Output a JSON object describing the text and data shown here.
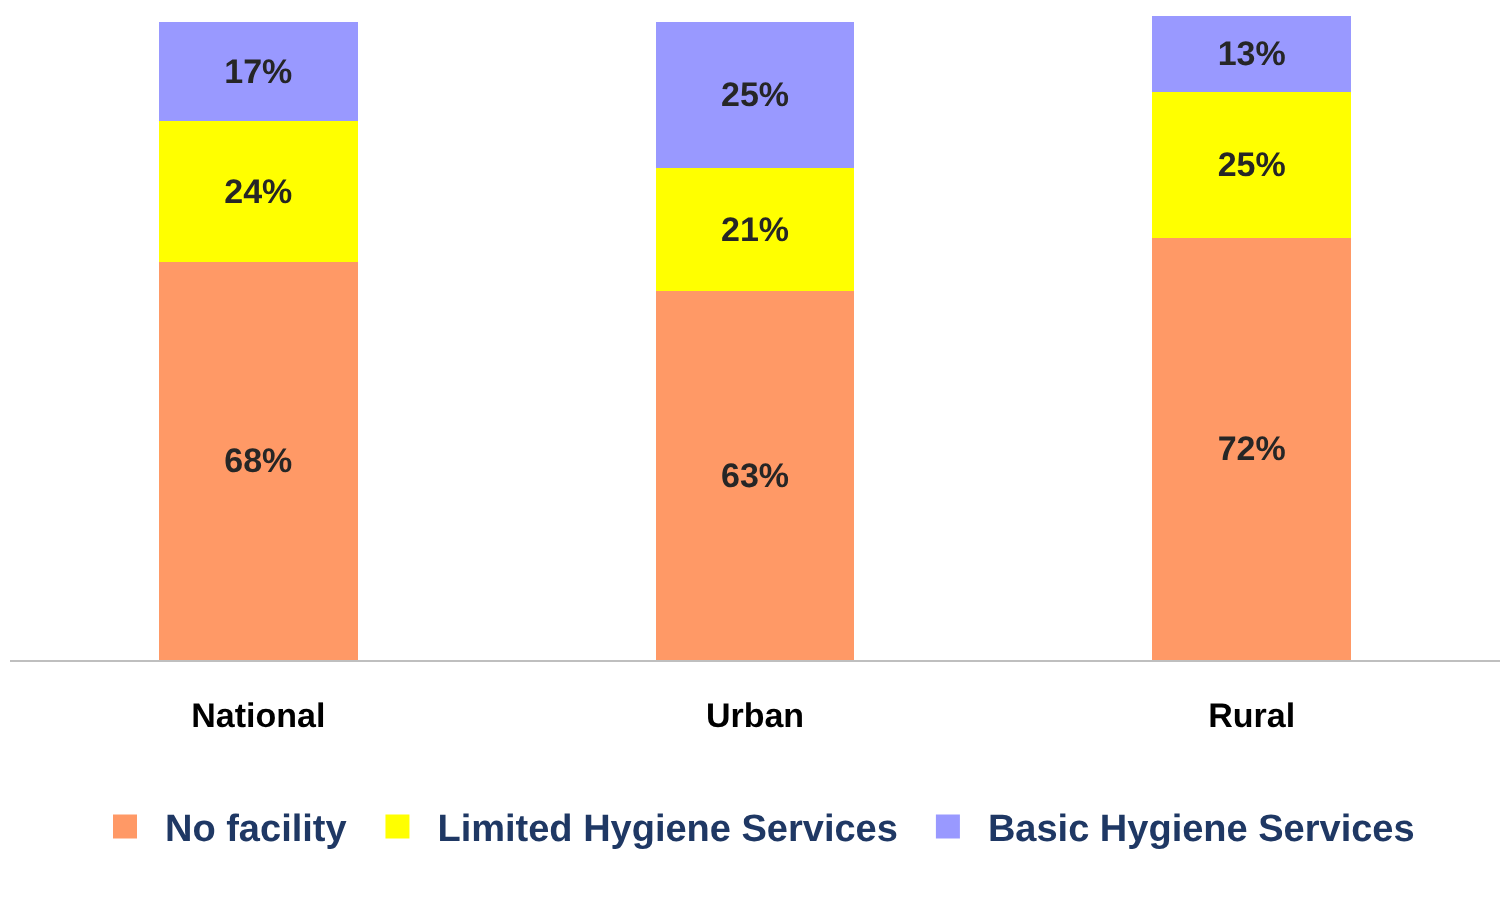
{
  "chart_data": {
    "type": "bar",
    "stacked": true,
    "legend": "bottom",
    "categories": [
      "National",
      "Urban",
      "Rural"
    ],
    "series": [
      {
        "name": "No facility",
        "color": "#ff9966",
        "values": [
          68,
          63,
          72
        ],
        "value_labels": [
          "68%",
          "63%",
          "72%"
        ]
      },
      {
        "name": "Limited Hygiene Services",
        "color": "#ffff00",
        "values": [
          24,
          21,
          25
        ],
        "value_labels": [
          "24%",
          "21%",
          "25%"
        ]
      },
      {
        "name": "Basic Hygiene Services",
        "color": "#9999ff",
        "values": [
          17,
          25,
          13
        ],
        "value_labels": [
          "17%",
          "25%",
          "13%"
        ]
      }
    ]
  }
}
